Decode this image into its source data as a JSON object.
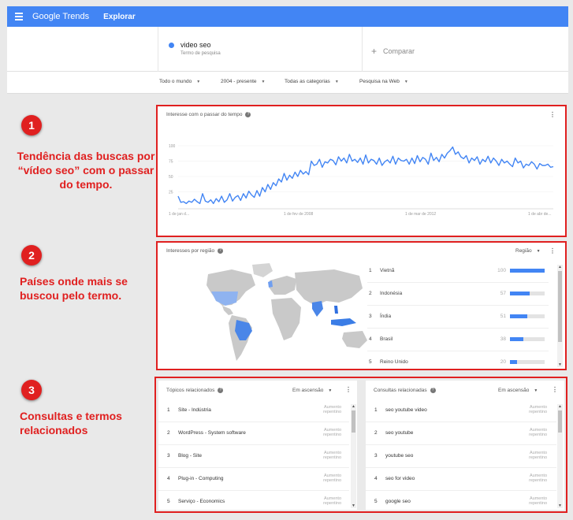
{
  "header": {
    "brand": "Google Trends",
    "nav": "Explorar"
  },
  "search": {
    "term": "video seo",
    "term_sub": "Termo de pesquisa",
    "compare_plus": "+",
    "compare": "Comparar"
  },
  "filters": [
    {
      "label": "Todo o mundo"
    },
    {
      "label": "2004 - presente"
    },
    {
      "label": "Todas as categorias"
    },
    {
      "label": "Pesquisa na Web"
    }
  ],
  "callouts": [
    {
      "num": "1",
      "text": "Tendência das buscas por “vídeo seo” com o passar do tempo."
    },
    {
      "num": "2",
      "text": "Países onde mais se buscou pelo termo."
    },
    {
      "num": "3",
      "text": "Consultas e termos relacionados"
    }
  ],
  "interest_over_time": {
    "title": "Interesse com o passar do tempo",
    "help": "?",
    "menu": "⋮",
    "chart_data": {
      "type": "line",
      "yticks": [
        25,
        50,
        75,
        100
      ],
      "ylim": [
        0,
        100
      ],
      "xticks": [
        "1 de jan d...",
        "1 de fev de 2008",
        "1 de mar de 2012",
        "1 de abr de..."
      ],
      "series_color": "#4285f4",
      "values": [
        18,
        8,
        9,
        6,
        10,
        8,
        13,
        9,
        6,
        22,
        10,
        8,
        12,
        6,
        14,
        9,
        18,
        8,
        12,
        22,
        10,
        16,
        19,
        11,
        22,
        15,
        26,
        20,
        16,
        27,
        18,
        32,
        25,
        37,
        29,
        40,
        35,
        46,
        41,
        55,
        44,
        52,
        47,
        57,
        50,
        60,
        54,
        58,
        53,
        75,
        68,
        70,
        78,
        65,
        74,
        72,
        78,
        76,
        69,
        82,
        75,
        80,
        72,
        86,
        75,
        78,
        73,
        80,
        70,
        85,
        72,
        78,
        76,
        70,
        80,
        68,
        74,
        77,
        72,
        83,
        70,
        80,
        76,
        75,
        78,
        70,
        80,
        71,
        84,
        74,
        81,
        78,
        70,
        88,
        76,
        81,
        74,
        86,
        80,
        88,
        92,
        98,
        86,
        90,
        82,
        79,
        84,
        72,
        80,
        76,
        82,
        70,
        78,
        74,
        83,
        72,
        80,
        75,
        68,
        78,
        72,
        75,
        70,
        66,
        80,
        72,
        75,
        64,
        70,
        68,
        74,
        70,
        62,
        71,
        68,
        68,
        70,
        65,
        66
      ]
    }
  },
  "regions": {
    "title": "Interesses por região",
    "help": "?",
    "selector": "Região",
    "menu": "⋮",
    "items": [
      {
        "rank": "1",
        "name": "Vietnã",
        "value": 100
      },
      {
        "rank": "2",
        "name": "Indonésia",
        "value": 57
      },
      {
        "rank": "3",
        "name": "Índia",
        "value": 51
      },
      {
        "rank": "4",
        "name": "Brasil",
        "value": 38
      },
      {
        "rank": "5",
        "name": "Reino Unido",
        "value": 20
      }
    ]
  },
  "topics": {
    "title": "Tópicos relacionados",
    "help": "?",
    "selector": "Em ascensão",
    "menu": "⋮",
    "items": [
      {
        "rank": "1",
        "name": "Site - Indústria",
        "badge": "Aumento repentino"
      },
      {
        "rank": "2",
        "name": "WordPress - System software",
        "badge": "Aumento repentino"
      },
      {
        "rank": "3",
        "name": "Blog - Site",
        "badge": "Aumento repentino"
      },
      {
        "rank": "4",
        "name": "Plug-in - Computing",
        "badge": "Aumento repentino"
      },
      {
        "rank": "5",
        "name": "Serviço - Economics",
        "badge": "Aumento repentino"
      }
    ]
  },
  "queries": {
    "title": "Consultas relacionadas",
    "help": "?",
    "selector": "Em ascensão",
    "menu": "⋮",
    "items": [
      {
        "rank": "1",
        "name": "seo youtube video",
        "badge": "Aumento repentino"
      },
      {
        "rank": "2",
        "name": "seo youtube",
        "badge": "Aumento repentino"
      },
      {
        "rank": "3",
        "name": "youtube seo",
        "badge": "Aumento repentino"
      },
      {
        "rank": "4",
        "name": "seo for video",
        "badge": "Aumento repentino"
      },
      {
        "rank": "5",
        "name": "google seo",
        "badge": "Aumento repentino"
      }
    ]
  }
}
